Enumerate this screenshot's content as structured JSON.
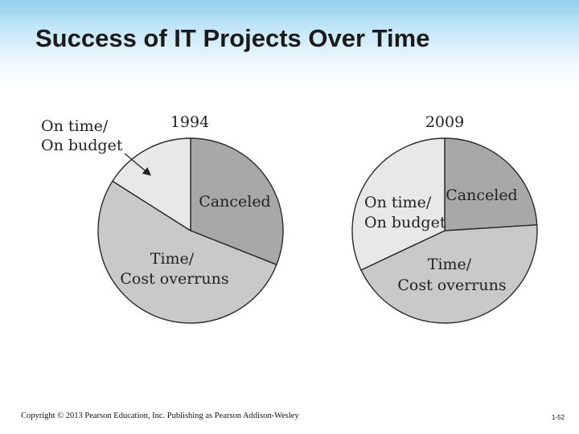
{
  "slide": {
    "title": "Success of IT Projects Over Time",
    "copyright": "Copyright © 2013 Pearson Education, Inc. Publishing as Pearson Addison-Wesley",
    "page_number": "1-52"
  },
  "colors": {
    "canceled": "#a8a8a8",
    "overruns": "#c9c9c9",
    "on_time": "#e8e8e8",
    "outline": "#2a2a2a"
  },
  "chart_data": [
    {
      "type": "pie",
      "title": "1994",
      "slices": [
        {
          "key": "canceled",
          "label_lines": [
            "Canceled"
          ],
          "value": 31
        },
        {
          "key": "overruns",
          "label_lines": [
            "Time/",
            "Cost overruns"
          ],
          "value": 53
        },
        {
          "key": "on_time",
          "label_lines": [
            "On time/",
            "On budget"
          ],
          "value": 16
        }
      ]
    },
    {
      "type": "pie",
      "title": "2009",
      "slices": [
        {
          "key": "canceled",
          "label_lines": [
            "Canceled"
          ],
          "value": 24
        },
        {
          "key": "overruns",
          "label_lines": [
            "Time/",
            "Cost overruns"
          ],
          "value": 44
        },
        {
          "key": "on_time",
          "label_lines": [
            "On time/",
            "On budget"
          ],
          "value": 32
        }
      ]
    }
  ]
}
